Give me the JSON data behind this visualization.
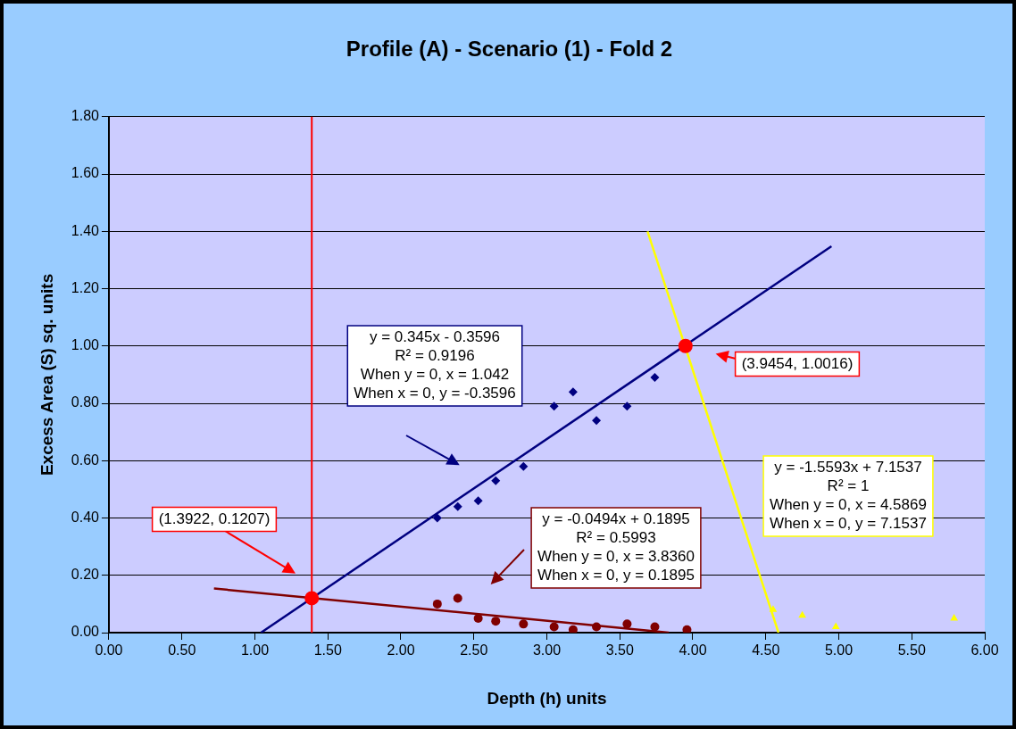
{
  "chart_data": {
    "type": "scatter",
    "title": "Profile (A) - Scenario (1) - Fold 2",
    "xlabel": "Depth (h) units",
    "ylabel": "Excess Area (S) sq. units",
    "xlim": [
      0,
      6
    ],
    "xticks": [
      {
        "value": 0,
        "label": "0.00"
      },
      {
        "value": 0.5,
        "label": "0.50"
      },
      {
        "value": 1,
        "label": "1.00"
      },
      {
        "value": 1.5,
        "label": "1.50"
      },
      {
        "value": 2,
        "label": "2.00"
      },
      {
        "value": 2.5,
        "label": "2.50"
      },
      {
        "value": 3,
        "label": "3.00"
      },
      {
        "value": 3.5,
        "label": "3.50"
      },
      {
        "value": 4,
        "label": "4.00"
      },
      {
        "value": 4.5,
        "label": "4.50"
      },
      {
        "value": 5,
        "label": "5.00"
      },
      {
        "value": 5.5,
        "label": "5.50"
      },
      {
        "value": 6,
        "label": "6.00"
      }
    ],
    "ylim": [
      0,
      1.8
    ],
    "yticks": [
      {
        "value": 0,
        "label": "0.00"
      },
      {
        "value": 0.2,
        "label": "0.20"
      },
      {
        "value": 0.4,
        "label": "0.40"
      },
      {
        "value": 0.6,
        "label": "0.60"
      },
      {
        "value": 0.8,
        "label": "0.80"
      },
      {
        "value": 1,
        "label": "1.00"
      },
      {
        "value": 1.2,
        "label": "1.20"
      },
      {
        "value": 1.4,
        "label": "1.40"
      },
      {
        "value": 1.6,
        "label": "1.60"
      },
      {
        "value": 1.8,
        "label": "1.80"
      }
    ],
    "grid": "y",
    "legend": false,
    "series": [
      {
        "marker": "diamond",
        "color": "#000080",
        "x": [
          2.25,
          2.39,
          2.53,
          2.65,
          2.84,
          3.05,
          3.18,
          3.34,
          3.55,
          3.74
        ],
        "values": [
          0.4,
          0.44,
          0.46,
          0.53,
          0.58,
          0.79,
          0.84,
          0.74,
          0.79,
          0.89
        ]
      },
      {
        "marker": "circle",
        "color": "#800000",
        "x": [
          2.25,
          2.39,
          2.53,
          2.65,
          2.84,
          3.05,
          3.18,
          3.34,
          3.55,
          3.74,
          3.96
        ],
        "values": [
          0.1,
          0.12,
          0.05,
          0.04,
          0.03,
          0.02,
          0.01,
          0.02,
          0.03,
          0.02,
          0.01
        ]
      },
      {
        "marker": "triangle",
        "color": "#ffff00",
        "x": [
          4.55,
          4.75,
          4.98,
          5.79
        ],
        "values": [
          0.08,
          0.06,
          0.02,
          0.05
        ]
      },
      {
        "type": "line",
        "marker": "none",
        "color": "#000080",
        "x": [
          1.042,
          4.95
        ],
        "values": [
          0,
          1.348
        ]
      },
      {
        "type": "line",
        "marker": "none",
        "color": "#800000",
        "x": [
          0.72,
          3.836
        ],
        "values": [
          0.154,
          0
        ]
      },
      {
        "type": "line",
        "marker": "none",
        "color": "#ffff00",
        "x": [
          3.69,
          4.5869
        ],
        "values": [
          1.4,
          0
        ]
      },
      {
        "marker": "circle",
        "color": "#ff0000",
        "x": [
          1.39,
          3.95
        ],
        "values": [
          0.12,
          1.0
        ]
      }
    ],
    "ref_lines": [
      {
        "axis": "x",
        "value": 1.39,
        "color": "#ff0000"
      }
    ],
    "annotations": [
      "(1.3922, 0.1207)",
      "(3.9454, 1.0016)",
      "y = 0.345x - 0.3596\nR² = 0.9196\nWhen y = 0, x = 1.042\nWhen x = 0, y = -0.3596",
      "y = -0.0494x + 0.1895\nR² = 0.5993\nWhen y = 0, x = 3.8360\nWhen x = 0, y = 0.1895",
      "y = -1.5593x + 7.1537\nR² = 1\nWhen y = 0, x = 4.5869\nWhen x = 0, y = 7.1537"
    ]
  }
}
